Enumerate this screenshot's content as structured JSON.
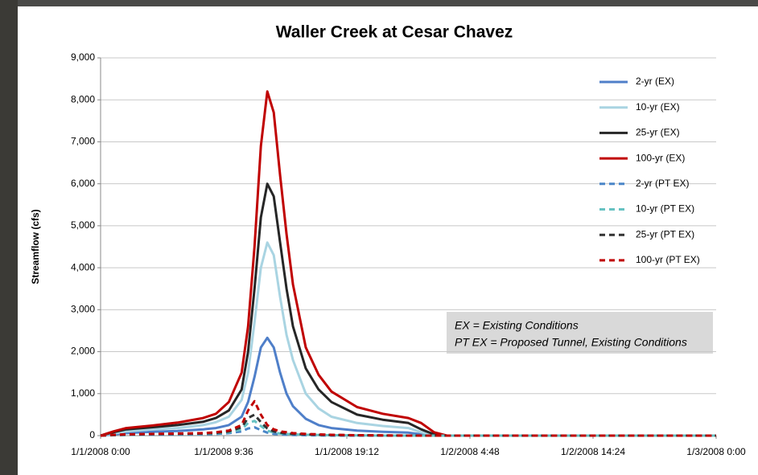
{
  "chart_data": {
    "type": "line",
    "title": "Waller Creek at Cesar Chavez",
    "y_label": "Streamflow (cfs)",
    "x": [
      "1/1/2008 0:00",
      "1/1/2008 1:00",
      "1/1/2008 2:00",
      "1/1/2008 4:00",
      "1/1/2008 6:00",
      "1/1/2008 8:00",
      "1/1/2008 9:00",
      "1/1/2008 10:00",
      "1/1/2008 11:00",
      "1/1/2008 11:30",
      "1/1/2008 12:00",
      "1/1/2008 12:30",
      "1/1/2008 13:00",
      "1/1/2008 13:30",
      "1/1/2008 14:00",
      "1/1/2008 14:30",
      "1/1/2008 15:00",
      "1/1/2008 16:00",
      "1/1/2008 17:00",
      "1/1/2008 18:00",
      "1/1/2008 20:00",
      "1/1/2008 22:00",
      "1/2/2008 0:00",
      "1/2/2008 1:00",
      "1/2/2008 2:00",
      "1/2/2008 3:00",
      "1/3/2008 0:00"
    ],
    "series": [
      {
        "name": "2-yr (EX)",
        "color": "#4f7fc9",
        "style": "solid",
        "values": [
          0,
          30,
          60,
          90,
          110,
          150,
          180,
          250,
          450,
          800,
          1400,
          2100,
          2330,
          2100,
          1500,
          1000,
          700,
          400,
          250,
          180,
          120,
          90,
          70,
          30,
          0,
          0,
          0
        ]
      },
      {
        "name": "10-yr (EX)",
        "color": "#a9d4e2",
        "style": "solid",
        "values": [
          0,
          50,
          100,
          150,
          180,
          250,
          320,
          450,
          850,
          1500,
          2700,
          4000,
          4600,
          4300,
          3300,
          2400,
          1800,
          1000,
          650,
          450,
          300,
          230,
          180,
          80,
          10,
          0,
          0
        ]
      },
      {
        "name": "25-yr (EX)",
        "color": "#262626",
        "style": "solid",
        "values": [
          0,
          80,
          150,
          200,
          250,
          330,
          420,
          600,
          1100,
          2000,
          3500,
          5200,
          6000,
          5700,
          4600,
          3500,
          2600,
          1600,
          1100,
          800,
          500,
          380,
          300,
          150,
          30,
          0,
          0
        ]
      },
      {
        "name": "100-yr (EX)",
        "color": "#c00000",
        "style": "solid",
        "values": [
          0,
          100,
          180,
          240,
          310,
          420,
          520,
          800,
          1500,
          2600,
          4500,
          6900,
          8200,
          7700,
          6200,
          4800,
          3600,
          2100,
          1450,
          1050,
          680,
          520,
          420,
          300,
          80,
          0,
          0
        ]
      },
      {
        "name": "2-yr (PT EX)",
        "color": "#4a86c8",
        "style": "dashed",
        "values": [
          0,
          10,
          15,
          20,
          25,
          30,
          40,
          60,
          100,
          170,
          200,
          130,
          70,
          40,
          30,
          20,
          15,
          10,
          5,
          0,
          0,
          0,
          0,
          0,
          0,
          0,
          0
        ]
      },
      {
        "name": "10-yr (PT EX)",
        "color": "#66c2c2",
        "style": "dashed",
        "values": [
          0,
          15,
          20,
          30,
          35,
          40,
          55,
          80,
          150,
          300,
          350,
          230,
          120,
          70,
          50,
          40,
          30,
          20,
          15,
          10,
          5,
          0,
          0,
          0,
          0,
          0,
          0
        ]
      },
      {
        "name": "25-yr (PT EX)",
        "color": "#333333",
        "style": "dashed",
        "values": [
          0,
          15,
          25,
          35,
          40,
          50,
          65,
          100,
          200,
          420,
          500,
          320,
          170,
          100,
          70,
          50,
          40,
          30,
          20,
          15,
          8,
          3,
          0,
          0,
          0,
          0,
          0
        ]
      },
      {
        "name": "100-yr (PT EX)",
        "color": "#c00000",
        "style": "dashed",
        "values": [
          0,
          20,
          30,
          40,
          50,
          60,
          80,
          120,
          250,
          600,
          820,
          500,
          250,
          150,
          100,
          80,
          60,
          40,
          30,
          20,
          10,
          5,
          0,
          0,
          0,
          0,
          0
        ]
      }
    ],
    "xlim": [
      "1/1/2008 0:00",
      "1/3/2008 0:00"
    ],
    "xticks": [
      "1/1/2008 0:00",
      "1/1/2008 9:36",
      "1/1/2008 19:12",
      "1/2/2008 4:48",
      "1/2/2008 14:24",
      "1/3/2008 0:00"
    ],
    "ylim": [
      0,
      9000
    ],
    "yticks": [
      0,
      {
        "value": 1000,
        "label": "1,000"
      },
      {
        "value": 2000,
        "label": "2,000"
      },
      {
        "value": 3000,
        "label": "3,000"
      },
      {
        "value": 4000,
        "label": "4,000"
      },
      {
        "value": 5000,
        "label": "5,000"
      },
      {
        "value": 6000,
        "label": "6,000"
      },
      {
        "value": 7000,
        "label": "7,000"
      },
      {
        "value": 8000,
        "label": "8,000"
      },
      {
        "value": 9000,
        "label": "9,000"
      }
    ],
    "grid": true,
    "legend": "right",
    "annotations": [
      "EX = Existing Conditions",
      "PT EX = Proposed Tunnel, Existing Conditions"
    ]
  }
}
